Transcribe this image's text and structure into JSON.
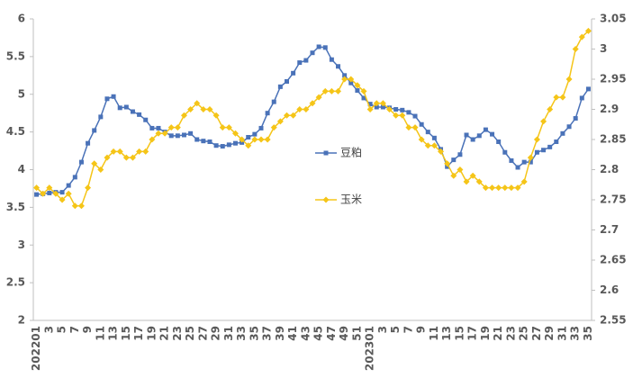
{
  "chart_data": {
    "type": "line",
    "categories": [
      "202201",
      null,
      "3",
      null,
      "5",
      null,
      "7",
      null,
      "9",
      null,
      "11",
      null,
      "13",
      null,
      "15",
      null,
      "17",
      null,
      "19",
      null,
      "21",
      null,
      "23",
      null,
      "25",
      null,
      "27",
      null,
      "29",
      null,
      "31",
      null,
      "33",
      null,
      "35",
      null,
      "37",
      null,
      "39",
      null,
      "41",
      null,
      "43",
      null,
      "45",
      null,
      "47",
      null,
      "49",
      null,
      "51",
      null,
      "202301",
      null,
      "3",
      null,
      "5",
      null,
      "7",
      null,
      "9",
      null,
      "11",
      null,
      "13",
      null,
      "15",
      null,
      "17",
      null,
      "19",
      null,
      "21",
      null,
      "23",
      null,
      "25",
      null,
      "27",
      null,
      "29",
      null,
      "31",
      null,
      "33",
      null,
      "35"
    ],
    "series": [
      {
        "name": "豆粕",
        "color": "#4a72b8",
        "marker": "square",
        "axis": "y",
        "values": [
          3.67,
          3.68,
          3.69,
          3.7,
          3.7,
          3.79,
          3.9,
          4.1,
          4.35,
          4.52,
          4.7,
          4.94,
          4.97,
          4.82,
          4.83,
          4.77,
          4.73,
          4.66,
          4.55,
          4.55,
          4.5,
          4.45,
          4.45,
          4.46,
          4.48,
          4.4,
          4.38,
          4.37,
          4.32,
          4.31,
          4.33,
          4.35,
          4.36,
          4.43,
          4.47,
          4.55,
          4.75,
          4.9,
          5.1,
          5.17,
          5.28,
          5.42,
          5.45,
          5.55,
          5.63,
          5.62,
          5.46,
          5.37,
          5.25,
          5.15,
          5.05,
          4.95,
          4.87,
          4.83,
          4.83,
          4.82,
          4.8,
          4.79,
          4.76,
          4.71,
          4.6,
          4.5,
          4.42,
          4.27,
          4.04,
          4.13,
          4.2,
          4.46,
          4.4,
          4.45,
          4.53,
          4.47,
          4.37,
          4.23,
          4.12,
          4.03,
          4.1,
          4.1,
          4.23,
          4.26,
          4.3,
          4.37,
          4.48,
          4.57,
          4.68,
          4.95,
          5.07
        ]
      },
      {
        "name": "玉米",
        "color": "#f5c518",
        "marker": "diamond",
        "axis": "y2",
        "values": [
          2.77,
          2.76,
          2.77,
          2.76,
          2.75,
          2.76,
          2.74,
          2.74,
          2.77,
          2.81,
          2.8,
          2.82,
          2.83,
          2.83,
          2.82,
          2.82,
          2.83,
          2.83,
          2.85,
          2.86,
          2.86,
          2.87,
          2.87,
          2.89,
          2.9,
          2.91,
          2.9,
          2.9,
          2.89,
          2.87,
          2.87,
          2.86,
          2.85,
          2.84,
          2.85,
          2.85,
          2.85,
          2.87,
          2.88,
          2.89,
          2.89,
          2.9,
          2.9,
          2.91,
          2.92,
          2.93,
          2.93,
          2.93,
          2.95,
          2.95,
          2.94,
          2.93,
          2.9,
          2.91,
          2.91,
          2.9,
          2.89,
          2.89,
          2.87,
          2.87,
          2.85,
          2.84,
          2.84,
          2.83,
          2.81,
          2.79,
          2.8,
          2.78,
          2.79,
          2.78,
          2.77,
          2.77,
          2.77,
          2.77,
          2.77,
          2.77,
          2.78,
          2.82,
          2.85,
          2.88,
          2.9,
          2.92,
          2.92,
          2.95,
          3.0,
          3.02,
          3.03
        ]
      }
    ],
    "ylim": [
      2,
      6
    ],
    "yticks": [
      2,
      2.5,
      3,
      3.5,
      4,
      4.5,
      5,
      5.5,
      6
    ],
    "y2lim": [
      2.55,
      3.05
    ],
    "y2ticks": [
      2.55,
      2.6,
      2.65,
      2.7,
      2.75,
      2.8,
      2.85,
      2.9,
      2.95,
      3,
      3.05
    ],
    "grid": false,
    "legend": "center"
  }
}
